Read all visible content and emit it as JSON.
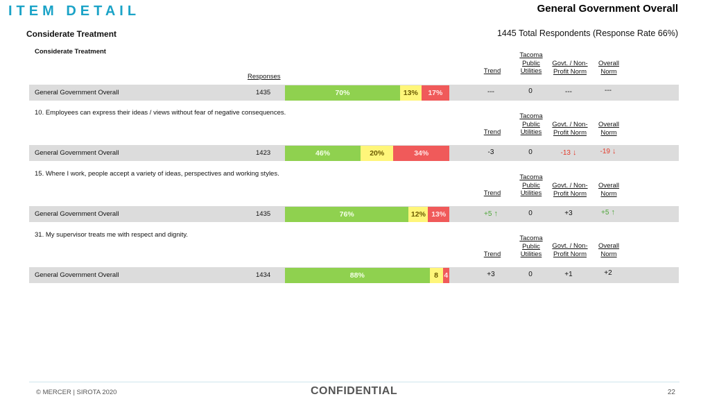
{
  "header": {
    "title": "ITEM DETAIL",
    "right_title": "General Government Overall",
    "section": "Considerate Treatment",
    "respondents": "1445 Total Respondents (Response Rate  66%)"
  },
  "table_intro": {
    "sub_heading": "Considerate Treatment",
    "responses_label": "Responses"
  },
  "columns": {
    "trend": "Trend",
    "tpu_1": "Tacoma",
    "tpu_2": "Public",
    "tpu_3": "Utilities",
    "govt_1": "Govt. / Non-",
    "govt_2": "Profit Norm",
    "overall_1": "Overall",
    "overall_2": "Norm"
  },
  "rows": [
    {
      "question": "",
      "label": "General Government Overall",
      "count": "1435",
      "favorable": 70,
      "neutral": 13,
      "unfavorable": 17,
      "fav_label": "70%",
      "neu_label": "13%",
      "unf_label": "17%",
      "trend": "---",
      "tpu": "0",
      "govt": "---",
      "overall": "---"
    },
    {
      "question": "10. Employees can express their ideas / views without fear of negative consequences.",
      "label": "General Government Overall",
      "count": "1423",
      "favorable": 46,
      "neutral": 20,
      "unfavorable": 34,
      "fav_label": "46%",
      "neu_label": "20%",
      "unf_label": "34%",
      "trend": "-3",
      "tpu": "0",
      "govt": "-13",
      "overall": "-19"
    },
    {
      "question": "15. Where I work, people accept a variety of ideas, perspectives and working styles.",
      "label": "General Government Overall",
      "count": "1435",
      "favorable": 76,
      "neutral": 12,
      "unfavorable": 13,
      "fav_label": "76%",
      "neu_label": "12%",
      "unf_label": "13%",
      "trend": "+5",
      "tpu": "0",
      "govt": "+3",
      "overall": "+5"
    },
    {
      "question": "31. My supervisor treats me with respect and dignity.",
      "label": "General Government Overall",
      "count": "1434",
      "favorable": 88,
      "neutral": 8,
      "unfavorable": 4,
      "fav_label": "88%",
      "neu_label": "8",
      "unf_label": "4",
      "trend": "+3",
      "tpu": "0",
      "govt": "+1",
      "overall": "+2"
    }
  ],
  "arrows": {
    "up": "↑",
    "down": "↓"
  },
  "footer": {
    "copyright": "© MERCER | SIROTA 2020",
    "confidential": "CONFIDENTIAL",
    "page": "22"
  }
}
